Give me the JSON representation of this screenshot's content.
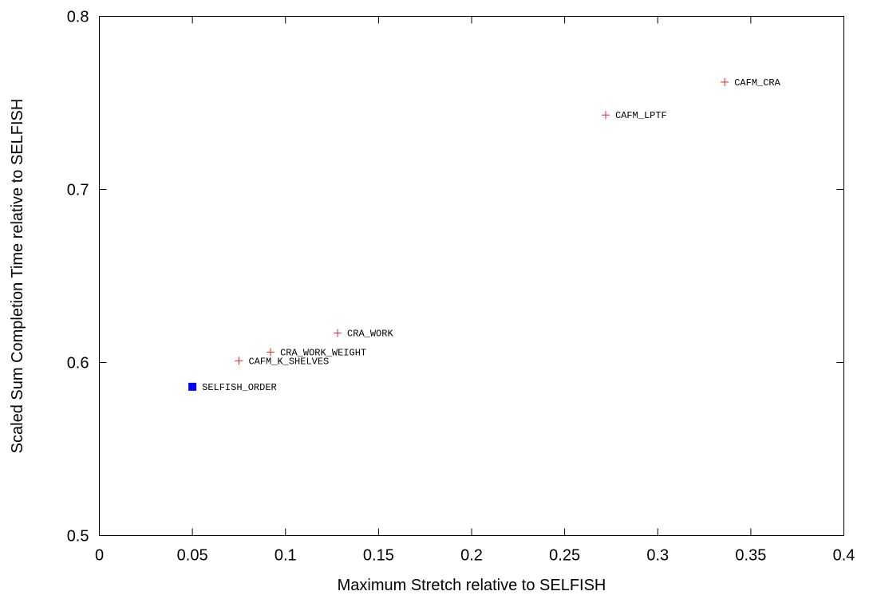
{
  "chart_data": {
    "type": "scatter",
    "title": "",
    "xlabel": "Maximum Stretch relative to SELFISH",
    "ylabel": "Scaled Sum Completion Time relative to SELFISH",
    "xlim": [
      0,
      0.4
    ],
    "ylim": [
      0.5,
      0.8
    ],
    "x_ticks": [
      0,
      0.05,
      0.1,
      0.15,
      0.2,
      0.25,
      0.3,
      0.35,
      0.4
    ],
    "x_tick_labels": [
      "0",
      "0.05",
      "0.1",
      "0.15",
      "0.2",
      "0.25",
      "0.3",
      "0.35",
      "0.4"
    ],
    "y_ticks": [
      0.5,
      0.6,
      0.7,
      0.8
    ],
    "y_tick_labels": [
      "0.5",
      "0.6",
      "0.7",
      "0.8"
    ],
    "grid": false,
    "legend": "none",
    "points": [
      {
        "label": "CAFM_CRA",
        "x": 0.336,
        "y": 0.762,
        "marker": "plus",
        "color": "#e8222b"
      },
      {
        "label": "CAFM_LPTF",
        "x": 0.272,
        "y": 0.743,
        "marker": "plus",
        "color": "#e8222b"
      },
      {
        "label": "CRA_WORK",
        "x": 0.128,
        "y": 0.617,
        "marker": "plus",
        "color": "#e8222b"
      },
      {
        "label": "CRA_WORK_WEIGHT",
        "x": 0.092,
        "y": 0.606,
        "marker": "plus",
        "color": "#e8222b"
      },
      {
        "label": "CAFM_K_SHELVES",
        "x": 0.075,
        "y": 0.601,
        "marker": "plus",
        "color": "#e8222b"
      },
      {
        "label": "SELFISH_ORDER",
        "x": 0.05,
        "y": 0.586,
        "marker": "square",
        "color": "#0000ff"
      }
    ]
  }
}
